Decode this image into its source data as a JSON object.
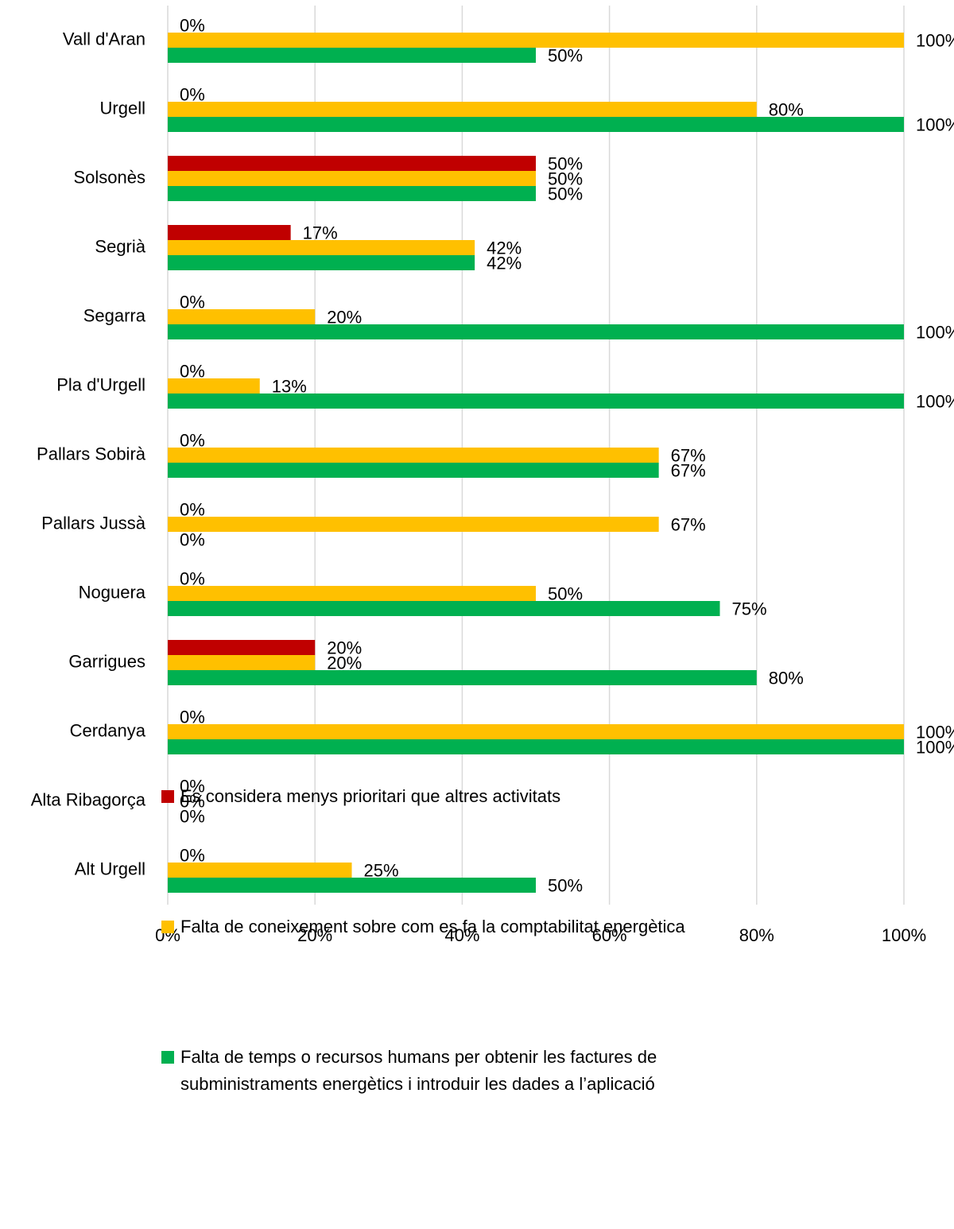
{
  "chart_data": {
    "type": "bar",
    "orientation": "horizontal",
    "categories": [
      "Vall d'Aran",
      "Urgell",
      "Solsonès",
      "Segrià",
      "Segarra",
      "Pla d'Urgell",
      "Pallars Sobirà",
      "Pallars Jussà",
      "Noguera",
      "Garrigues",
      "Cerdanya",
      "Alta Ribagorça",
      "Alt Urgell"
    ],
    "series": [
      {
        "name": "Es considera menys prioritari que altres activitats",
        "color": "#c00000",
        "values": [
          0,
          0,
          50,
          16.7,
          0,
          0,
          0,
          0,
          0,
          20,
          0,
          0,
          0
        ],
        "value_labels": [
          "0%",
          "0%",
          "50%",
          "17%",
          "0%",
          "0%",
          "0%",
          "0%",
          "0%",
          "20%",
          "0%",
          "0%",
          "0%"
        ]
      },
      {
        "name": "Falta de coneixement sobre com es fa la comptabilitat energètica",
        "color": "#ffc000",
        "values": [
          100,
          80,
          50,
          41.7,
          20,
          12.5,
          66.7,
          66.7,
          50,
          20,
          100,
          0,
          25
        ],
        "value_labels": [
          "100%",
          "80%",
          "50%",
          "42%",
          "20%",
          "13%",
          "67%",
          "67%",
          "50%",
          "20%",
          "100%",
          "0%",
          "25%"
        ]
      },
      {
        "name": "Falta de temps o recursos humans per obtenir les factures de subministraments energètics i introduir les dades a l’aplicació",
        "color": "#00b050",
        "values": [
          50,
          100,
          50,
          41.7,
          100,
          100,
          66.7,
          0,
          75,
          80,
          100,
          0,
          50
        ],
        "value_labels": [
          "50%",
          "100%",
          "50%",
          "42%",
          "100%",
          "100%",
          "67%",
          "0%",
          "75%",
          "80%",
          "100%",
          "0%",
          "50%"
        ]
      }
    ],
    "xlim": [
      0,
      100
    ],
    "xticks": [
      {
        "value": 0,
        "label": "0%"
      },
      {
        "value": 20,
        "label": "20%"
      },
      {
        "value": 40,
        "label": "40%"
      },
      {
        "value": 60,
        "label": "60%"
      },
      {
        "value": 80,
        "label": "80%"
      },
      {
        "value": 100,
        "label": "100%"
      }
    ],
    "grid": true,
    "legend": "bottom"
  }
}
